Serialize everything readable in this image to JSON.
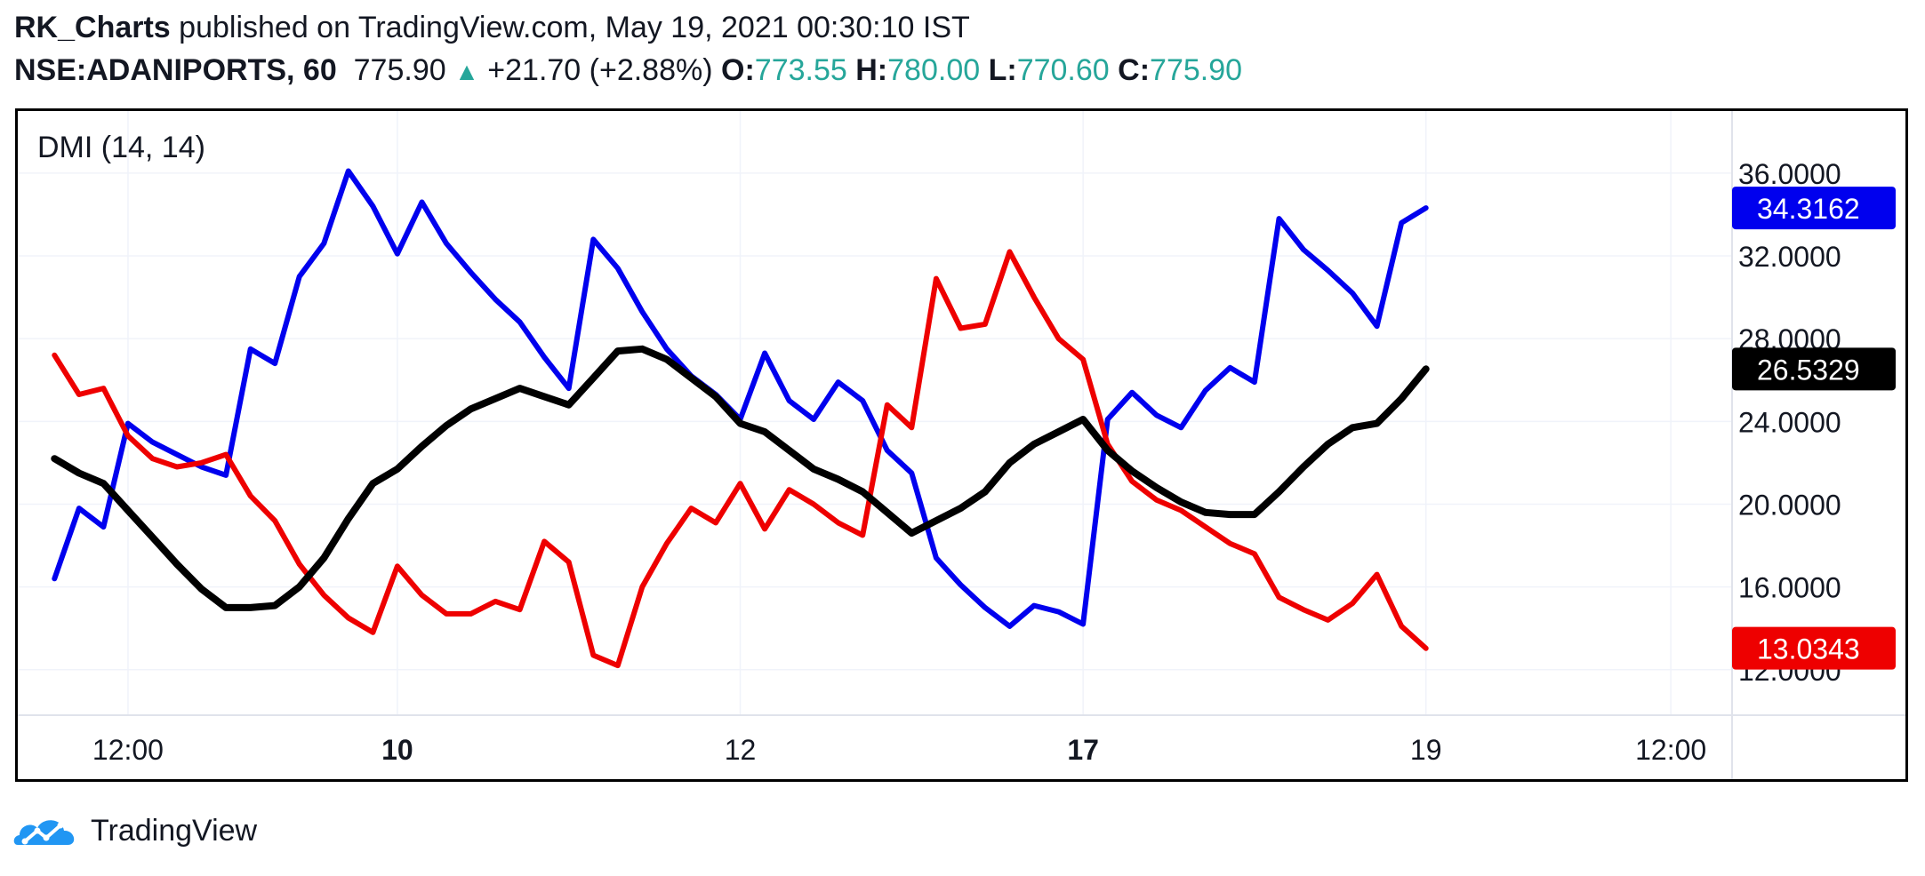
{
  "header": {
    "author": "RK_Charts",
    "published_text": "published on TradingView.com, May 19, 2021 00:30:10 IST",
    "symbol": "NSE:ADANIPORTS, 60",
    "price": "775.90",
    "change": "+21.70 (+2.88%)",
    "o_label": "O:",
    "o_value": "773.55",
    "h_label": "H:",
    "h_value": "780.00",
    "l_label": "L:",
    "l_value": "770.60",
    "c_label": "C:",
    "c_value": "775.90"
  },
  "footer": {
    "brand": "TradingView"
  },
  "colors": {
    "plus_di": "#0000ee",
    "minus_di": "#ee0000",
    "adx": "#000000",
    "up": "#26a69a"
  },
  "chart_data": {
    "type": "line",
    "indicator_label": "DMI (14, 14)",
    "x_tick_labels": [
      {
        "label": "12:00",
        "bold": false,
        "bar": 3
      },
      {
        "label": "10",
        "bold": true,
        "bar": 14
      },
      {
        "label": "12",
        "bold": false,
        "bar": 28
      },
      {
        "label": "17",
        "bold": true,
        "bar": 42
      },
      {
        "label": "19",
        "bold": false,
        "bar": 56
      },
      {
        "label": "12:00",
        "bold": false,
        "bar": 66
      }
    ],
    "y_ticks": [
      "12.0000",
      "16.0000",
      "20.0000",
      "24.0000",
      "28.0000",
      "32.0000",
      "36.0000"
    ],
    "ylim": [
      9.8,
      39.0
    ],
    "bar_range": [
      -1.5,
      68.5
    ],
    "series": [
      {
        "key": "plus_di",
        "color": "#0000ee",
        "last_label": "34.3162",
        "values": [
          16.4,
          19.8,
          18.9,
          23.9,
          23.0,
          22.4,
          21.8,
          21.4,
          27.5,
          26.8,
          31.0,
          32.6,
          36.1,
          34.4,
          32.1,
          34.6,
          32.6,
          31.2,
          29.9,
          28.8,
          27.1,
          25.6,
          32.8,
          31.4,
          29.3,
          27.5,
          26.2,
          25.3,
          24.1,
          27.3,
          25.0,
          24.1,
          25.9,
          25.0,
          22.6,
          21.5,
          17.4,
          16.1,
          15.0,
          14.1,
          15.1,
          14.8,
          14.2,
          24.1,
          25.4,
          24.3,
          23.7,
          25.5,
          26.6,
          25.9,
          33.8,
          32.3,
          31.3,
          30.2,
          28.6,
          33.6,
          34.3162
        ]
      },
      {
        "key": "minus_di",
        "color": "#ee0000",
        "last_label": "13.0343",
        "values": [
          27.2,
          25.3,
          25.6,
          23.3,
          22.2,
          21.8,
          22.0,
          22.4,
          20.4,
          19.2,
          17.1,
          15.6,
          14.5,
          13.8,
          17.0,
          15.6,
          14.7,
          14.7,
          15.3,
          14.9,
          18.2,
          17.2,
          12.7,
          12.2,
          16.0,
          18.1,
          19.8,
          19.1,
          21.0,
          18.8,
          20.7,
          20.0,
          19.1,
          18.5,
          24.8,
          23.7,
          30.9,
          28.5,
          28.7,
          32.2,
          30.0,
          28.0,
          27.0,
          22.9,
          21.1,
          20.2,
          19.7,
          18.9,
          18.1,
          17.6,
          15.5,
          14.9,
          14.4,
          15.2,
          16.6,
          14.1,
          13.0343
        ]
      },
      {
        "key": "adx",
        "color": "#000000",
        "last_label": "26.5329",
        "values": [
          22.2,
          21.5,
          21.0,
          19.7,
          18.4,
          17.1,
          15.9,
          15.0,
          15.0,
          15.1,
          16.0,
          17.4,
          19.3,
          21.0,
          21.7,
          22.8,
          23.8,
          24.6,
          25.1,
          25.6,
          25.2,
          24.8,
          26.1,
          27.4,
          27.5,
          27.0,
          26.1,
          25.2,
          23.9,
          23.5,
          22.6,
          21.7,
          21.2,
          20.6,
          19.6,
          18.6,
          19.2,
          19.8,
          20.6,
          22.0,
          22.9,
          23.5,
          24.1,
          22.6,
          21.6,
          20.8,
          20.1,
          19.6,
          19.5,
          19.5,
          20.6,
          21.8,
          22.9,
          23.7,
          23.9,
          25.1,
          26.5329
        ]
      }
    ]
  }
}
